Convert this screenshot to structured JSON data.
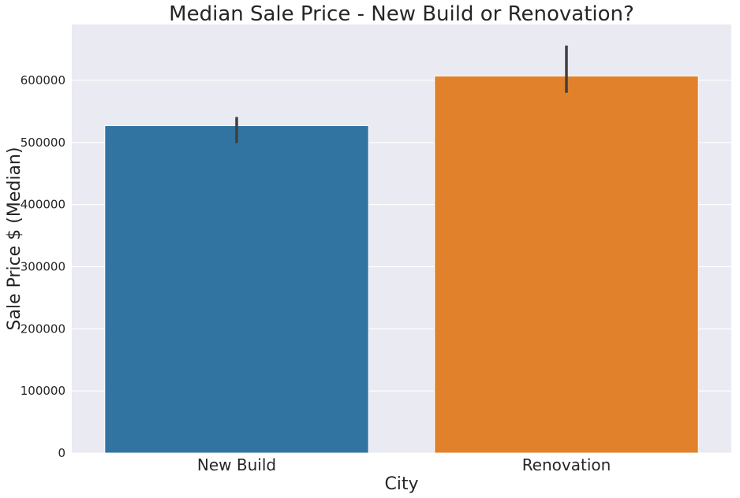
{
  "chart_data": {
    "type": "bar",
    "title": "Median Sale Price - New Build or Renovation?",
    "xlabel": "City",
    "ylabel": "Sale Price $ (Median)",
    "categories": [
      "New Build",
      "Renovation"
    ],
    "values": [
      527000,
      607000
    ],
    "error_bars": [
      {
        "low": 499000,
        "high": 541000
      },
      {
        "low": 580000,
        "high": 656000
      }
    ],
    "ylim": [
      0,
      690000
    ],
    "yticks": [
      0,
      100000,
      200000,
      300000,
      400000,
      500000,
      600000
    ],
    "ytick_labels": [
      "0",
      "100000",
      "200000",
      "300000",
      "400000",
      "500000",
      "600000"
    ],
    "colors": [
      "#3274a1",
      "#e1812c"
    ],
    "background_color": "#eaeaf2",
    "grid_color": "#ffffff",
    "errorbar_color": "#3f3f3f",
    "grid": true,
    "legend": false
  }
}
